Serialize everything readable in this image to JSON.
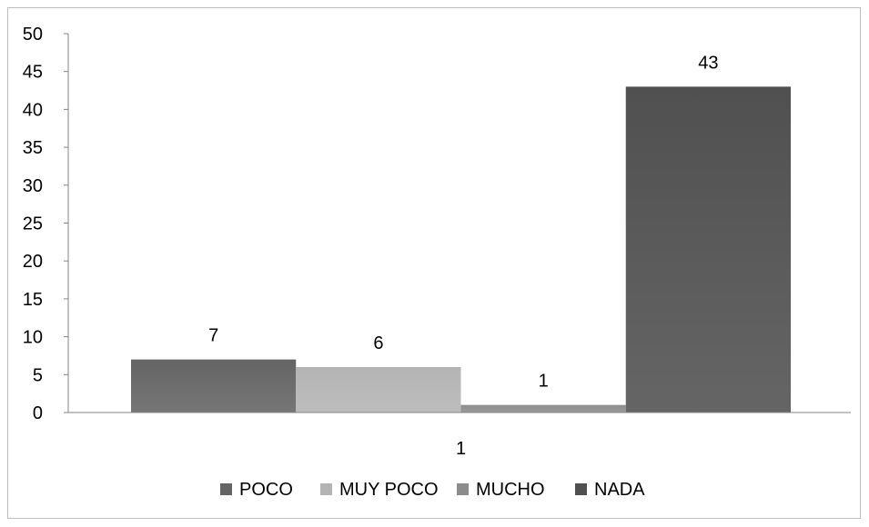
{
  "chart_data": {
    "type": "bar",
    "categories": [
      "1"
    ],
    "series": [
      {
        "name": "POCO",
        "values": [
          7
        ],
        "color": "#646464"
      },
      {
        "name": "MUY POCO",
        "values": [
          6
        ],
        "color": "#b4b4b4"
      },
      {
        "name": "MUCHO",
        "values": [
          1
        ],
        "color": "#8c8c8c"
      },
      {
        "name": "NADA",
        "values": [
          43
        ],
        "color": "#505050"
      }
    ],
    "ylim": [
      0,
      50
    ],
    "yticks": [
      "0",
      "5",
      "10",
      "15",
      "20",
      "25",
      "30",
      "35",
      "40",
      "45",
      "50"
    ],
    "grid": false,
    "legend_position": "bottom",
    "data_labels": true
  }
}
